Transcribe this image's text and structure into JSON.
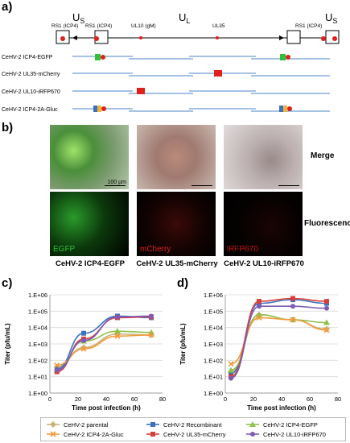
{
  "panels": {
    "a": "a)",
    "b": "b)",
    "c": "c)",
    "d": "d)"
  },
  "genome_map": {
    "region_us": "U",
    "region_us_sub": "S",
    "region_ul": "U",
    "region_ul_sub": "L",
    "rs1_left_a": "RS1 (ICP4)",
    "rs1_left_b": "RS1 (ICP4)",
    "ul10": "UL10 (gM)",
    "ul35": "UL35",
    "rs1_right": "RS1 (ICP4)",
    "constructs": [
      "CeHV-2 ICP4-EGFP",
      "CeHV-2 UL35-mCherry",
      "CeHV-2 UL10-iRFP670",
      "CeHV-2 ICP4-2A-Gluc"
    ]
  },
  "microscopy": {
    "row_merge": "Merge",
    "row_fluorescence": "Fluorescence",
    "scale_bar": "100 µm",
    "channels": [
      "EGFP",
      "mCherry",
      "iRFP670"
    ],
    "captions": [
      "CeHV-2 ICP4-EGFP",
      "CeHV-2 UL35-mCherry",
      "CeHV-2 UL10-iRFP670"
    ],
    "colors": {
      "egfp": "#2fc13a",
      "mcherry": "#e0201a",
      "irfp": "#cc1010"
    }
  },
  "legend": [
    {
      "label": "CeHV-2 parental",
      "color": "#c8b27a",
      "marker": "diamond"
    },
    {
      "label": "CeHV-2 Recombinant",
      "color": "#3b72c0",
      "marker": "square"
    },
    {
      "label": "CeHV-2 ICP4-EGFP",
      "color": "#8fc14a",
      "marker": "triangle"
    },
    {
      "label": "CeHV-2 ICP4-2A-Gluc",
      "color": "#f39a3c",
      "marker": "x"
    },
    {
      "label": "CeHV-2 UL35-mCherry",
      "color": "#d6403a",
      "marker": "square"
    },
    {
      "label": "CeHV-2 UL10-iRFP670",
      "color": "#7e5bb5",
      "marker": "circle"
    }
  ],
  "chart_data": [
    {
      "type": "line",
      "panel": "c",
      "xlabel": "Time post infection (h)",
      "ylabel": "Titer (pfu/mL)",
      "xlim": [
        0,
        80
      ],
      "xticks": [
        0,
        20,
        40,
        60,
        80
      ],
      "ylim_log10": [
        0,
        6
      ],
      "ytick_labels": [
        "1.E+00",
        "1.E+01",
        "1.E+02",
        "1.E+03",
        "1.E+04",
        "1.E+05",
        "1.E+06"
      ],
      "x": [
        5,
        24,
        48,
        72
      ],
      "grid": true,
      "series": [
        {
          "name": "CeHV-2 parental",
          "values": [
            40,
            600,
            4000,
            3500
          ]
        },
        {
          "name": "CeHV-2 Recombinant",
          "values": [
            30,
            4500,
            50000,
            40000
          ]
        },
        {
          "name": "CeHV-2 ICP4-EGFP",
          "values": [
            25,
            1500,
            6000,
            5000
          ]
        },
        {
          "name": "CeHV-2 ICP4-2A-Gluc",
          "values": [
            50,
            500,
            3000,
            3500
          ]
        },
        {
          "name": "CeHV-2 UL35-mCherry",
          "values": [
            20,
            2000,
            40000,
            45000
          ]
        },
        {
          "name": "CeHV-2 UL10-iRFP670",
          "values": [
            25,
            1600,
            45000,
            50000
          ]
        }
      ]
    },
    {
      "type": "line",
      "panel": "d",
      "xlabel": "Time post infection (h)",
      "ylabel": "Titer (pfu/mL)",
      "xlim": [
        0,
        80
      ],
      "xticks": [
        0,
        20,
        40,
        60,
        80
      ],
      "ylim_log10": [
        0,
        6
      ],
      "ytick_labels": [
        "1.E+00",
        "1.E+01",
        "1.E+02",
        "1.E+03",
        "1.E+04",
        "1.E+05",
        "1.E+06"
      ],
      "x": [
        4,
        24,
        48,
        72
      ],
      "grid": true,
      "series": [
        {
          "name": "CeHV-2 parental",
          "values": [
            20,
            60000,
            30000,
            8000
          ]
        },
        {
          "name": "CeHV-2 Recombinant",
          "values": [
            15,
            300000,
            500000,
            300000
          ]
        },
        {
          "name": "CeHV-2 ICP4-EGFP",
          "values": [
            25,
            60000,
            30000,
            20000
          ]
        },
        {
          "name": "CeHV-2 ICP4-2A-Gluc",
          "values": [
            60,
            40000,
            30000,
            7000
          ]
        },
        {
          "name": "CeHV-2 UL35-mCherry",
          "values": [
            10,
            400000,
            600000,
            400000
          ]
        },
        {
          "name": "CeHV-2 UL10-iRFP670",
          "values": [
            8,
            200000,
            200000,
            150000
          ]
        }
      ]
    }
  ]
}
